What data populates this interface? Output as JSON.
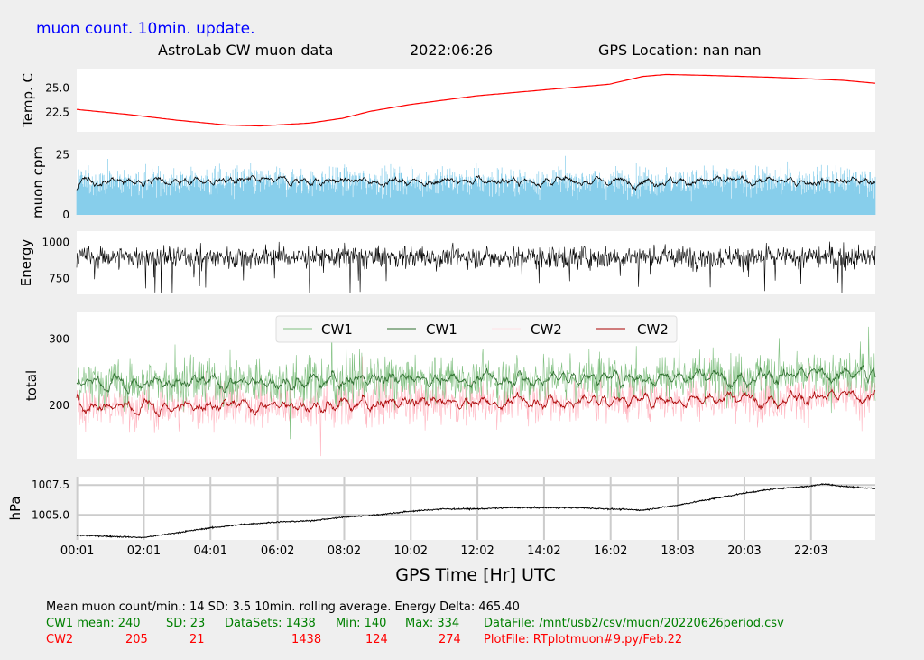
{
  "header": {
    "subtitle": "muon count.  10min. update.",
    "title_left": "AstroLab CW muon data",
    "title_date": "2022:06:26",
    "title_gps": "GPS Location: nan   nan"
  },
  "colors": {
    "background": "#efefef",
    "panel": "#ffffff",
    "temp": "#ff0000",
    "muon_bars": "#87ceeb",
    "muon_avg": "#000000",
    "energy": "#000000",
    "cw1_raw": "#7fbf7f",
    "cw1_avg": "#2f6f2f",
    "cw2_raw": "#ffb6c1",
    "cw2_avg": "#aa0000",
    "pressure": "#000000",
    "grid": "#cccccc",
    "subtitle": "#0000ff",
    "footer_cw1": "#008000",
    "footer_cw2": "#ff0000"
  },
  "chart_data": [
    {
      "type": "line",
      "panel": "temperature",
      "ylabel": "Temp. C",
      "yticks": [
        22.5,
        25.0
      ],
      "ylim": [
        20.5,
        27.0
      ],
      "x_hours": [
        0.0,
        1.5,
        3.0,
        4.5,
        5.5,
        7.0,
        8.0,
        8.8,
        10.0,
        12.0,
        14.0,
        16.0,
        17.0,
        17.7,
        19.0,
        21.0,
        23.0,
        23.98
      ],
      "values": [
        22.8,
        22.3,
        21.7,
        21.2,
        21.1,
        21.4,
        21.9,
        22.6,
        23.3,
        24.2,
        24.8,
        25.4,
        26.2,
        26.4,
        26.3,
        26.1,
        25.8,
        25.5
      ]
    },
    {
      "type": "bar+line",
      "panel": "muon",
      "ylabel": "muon cpm",
      "yticks": [
        0,
        25
      ],
      "ylim": [
        0,
        27
      ],
      "mean": 14,
      "sd": 3.5,
      "samples": 1438,
      "series": [
        {
          "name": "muon count per minute (bars)"
        },
        {
          "name": "10min. rolling average (line)"
        }
      ]
    },
    {
      "type": "line",
      "panel": "energy",
      "ylabel": "Energy",
      "yticks": [
        750,
        1000
      ],
      "ylim": [
        640,
        1080
      ],
      "mean": 900,
      "samples": 1438
    },
    {
      "type": "line",
      "panel": "total",
      "ylabel": "total",
      "yticks": [
        200,
        300
      ],
      "ylim": [
        120,
        340
      ],
      "legend": {
        "placement": "upper-center",
        "entries": [
          "CW1",
          "CW1",
          "CW2",
          "CW2"
        ]
      },
      "series": [
        {
          "name": "CW1",
          "mean": 240,
          "sd": 23,
          "min": 140,
          "max": 334,
          "role": "raw"
        },
        {
          "name": "CW1",
          "mean": 240,
          "role": "rolling"
        },
        {
          "name": "CW2",
          "mean": 205,
          "sd": 21,
          "min": 124,
          "max": 274,
          "role": "raw"
        },
        {
          "name": "CW2",
          "mean": 205,
          "role": "rolling"
        }
      ]
    },
    {
      "type": "line",
      "panel": "pressure",
      "ylabel": "hPa",
      "yticks": [
        1005.0,
        1007.5
      ],
      "ylim": [
        1002.9,
        1008.2
      ],
      "grid": true,
      "x_hours": [
        0.0,
        1.0,
        2.0,
        3.0,
        4.0,
        5.0,
        6.0,
        7.0,
        8.0,
        9.0,
        10.0,
        11.0,
        12.0,
        13.0,
        14.0,
        15.0,
        16.0,
        17.0,
        18.0,
        19.0,
        20.0,
        21.0,
        22.0,
        22.4,
        23.0,
        23.98
      ],
      "values": [
        1003.3,
        1003.2,
        1003.1,
        1003.5,
        1003.9,
        1004.2,
        1004.4,
        1004.5,
        1004.8,
        1005.0,
        1005.3,
        1005.5,
        1005.5,
        1005.6,
        1005.6,
        1005.6,
        1005.5,
        1005.4,
        1005.8,
        1006.3,
        1006.8,
        1007.2,
        1007.4,
        1007.6,
        1007.4,
        1007.2
      ]
    }
  ],
  "xaxis": {
    "label": "GPS Time  [Hr] UTC",
    "range_hours": [
      0.0,
      23.98
    ],
    "ticks": [
      {
        "hour": 0.0167,
        "label": "00:01"
      },
      {
        "hour": 2.0167,
        "label": "02:01"
      },
      {
        "hour": 4.0167,
        "label": "04:01"
      },
      {
        "hour": 6.0333,
        "label": "06:02"
      },
      {
        "hour": 8.0333,
        "label": "08:02"
      },
      {
        "hour": 10.0333,
        "label": "10:02"
      },
      {
        "hour": 12.0333,
        "label": "12:02"
      },
      {
        "hour": 14.0333,
        "label": "14:02"
      },
      {
        "hour": 16.0333,
        "label": "16:02"
      },
      {
        "hour": 18.05,
        "label": "18:03"
      },
      {
        "hour": 20.05,
        "label": "20:03"
      },
      {
        "hour": 22.05,
        "label": "22:03"
      }
    ]
  },
  "footer": {
    "line1": "Mean muon count/min.: 14  SD: 3.5   10min. rolling average.    Energy Delta:  465.40",
    "cw1": {
      "name": "CW1 mean: 240",
      "sd": "SD: 23",
      "datasets": "DataSets: 1438",
      "min": "Min: 140",
      "max": "Max: 334",
      "file": "DataFile: /mnt/usb2/csv/muon/20220626period.csv"
    },
    "cw2": {
      "name": "CW2",
      "mean": "205",
      "sd": "21",
      "datasets": "1438",
      "min": "124",
      "max": "274",
      "file": "PlotFile: RTplotmuon#9.py/Feb.22"
    }
  }
}
